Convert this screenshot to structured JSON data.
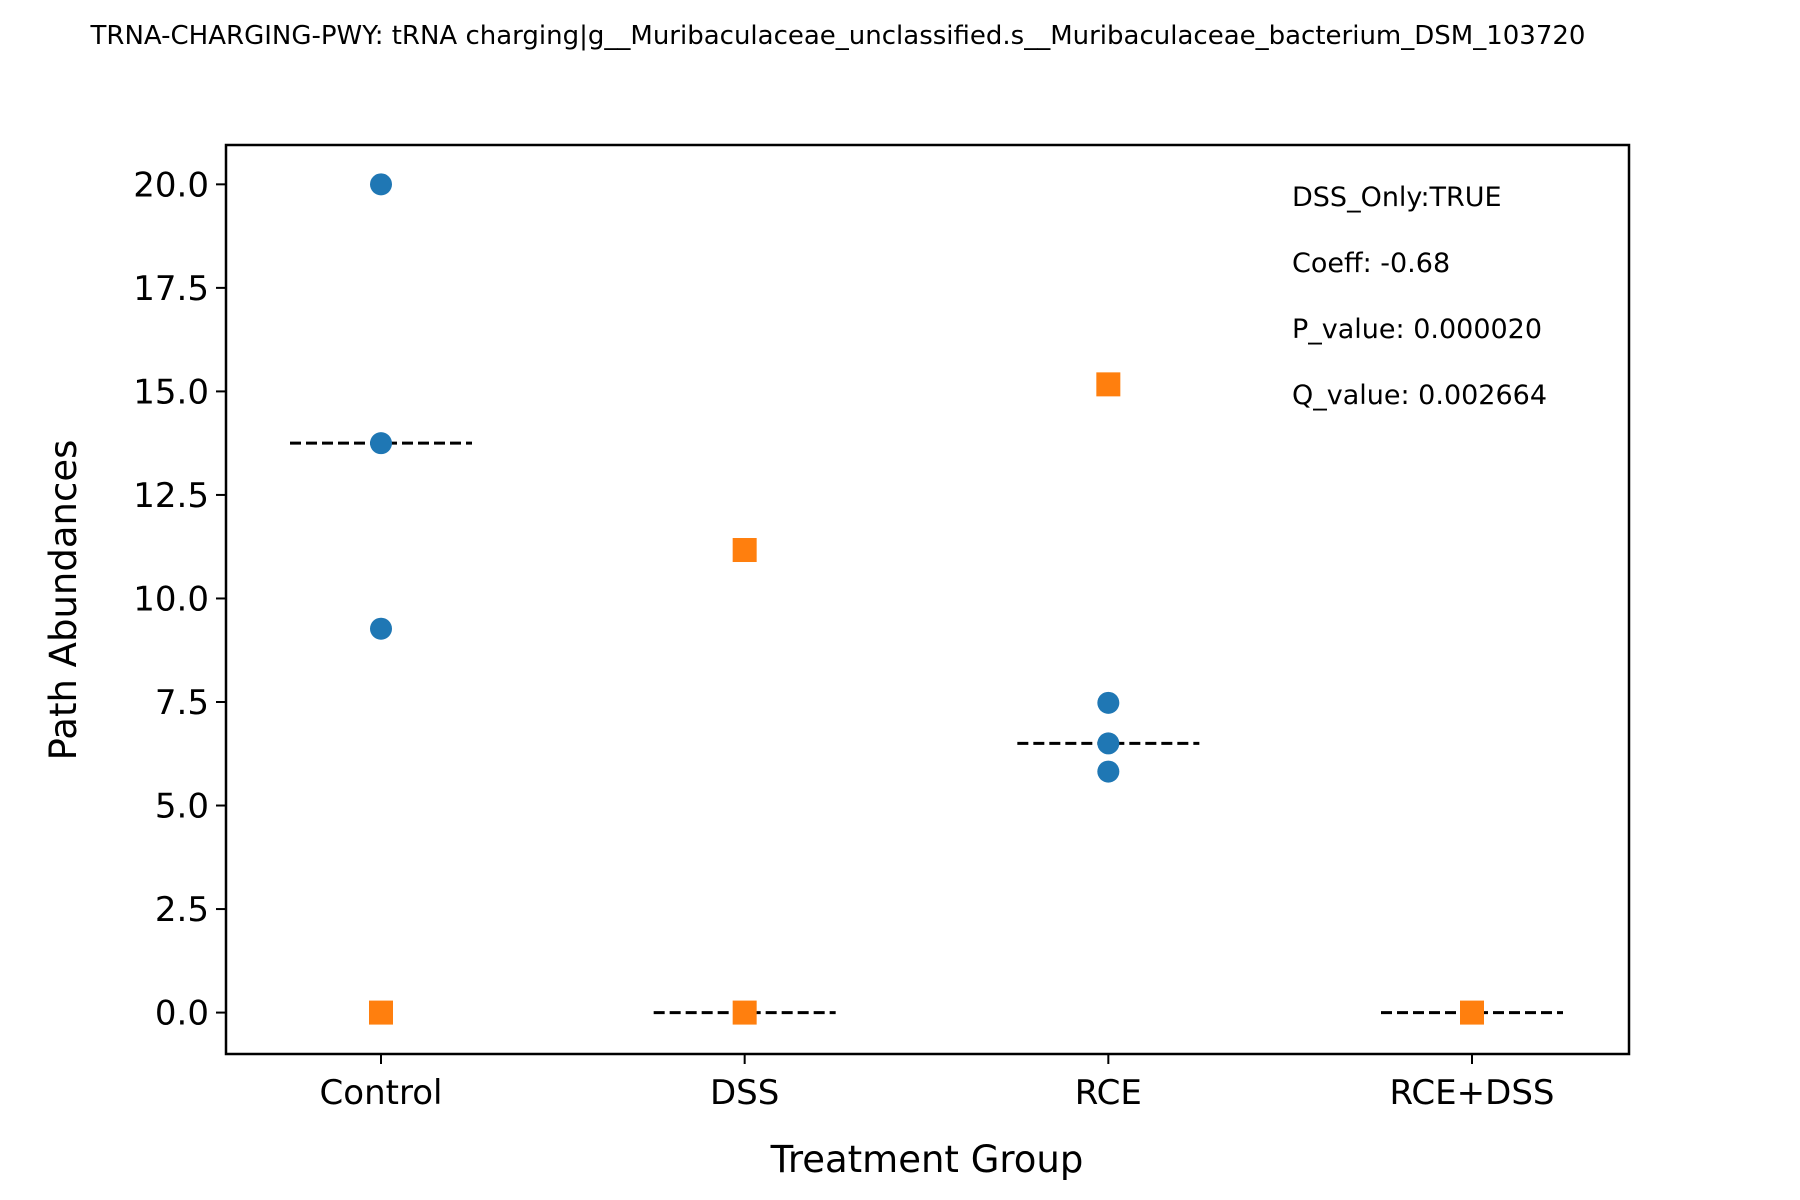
{
  "chart_data": {
    "type": "scatter",
    "title": "TRNA-CHARGING-PWY: tRNA charging|g__Muribaculaceae_unclassified.s__Muribaculaceae_bacterium_DSM_103720",
    "xlabel": "Treatment Group",
    "ylabel": "Path Abundances",
    "categories": [
      "Control",
      "DSS",
      "RCE",
      "RCE+DSS"
    ],
    "ylim": [
      -1.0,
      20.95
    ],
    "yticks": [
      "0.0",
      "2.5",
      "5.0",
      "7.5",
      "10.0",
      "12.5",
      "15.0",
      "17.5",
      "20.0"
    ],
    "grid": false,
    "colors": {
      "circle_series": "#1f77b4",
      "square_series": "#ff7f0e",
      "median_line": "#000000"
    },
    "series": [
      {
        "marker": "circle",
        "color": "#1f77b4",
        "points": [
          {
            "category": "Control",
            "value": 20.0
          },
          {
            "category": "Control",
            "value": 13.75
          },
          {
            "category": "Control",
            "value": 9.27
          },
          {
            "category": "RCE",
            "value": 7.48
          },
          {
            "category": "RCE",
            "value": 6.5
          },
          {
            "category": "RCE",
            "value": 5.82
          }
        ]
      },
      {
        "marker": "square",
        "color": "#ff7f0e",
        "points": [
          {
            "category": "Control",
            "value": 0.0
          },
          {
            "category": "DSS",
            "value": 11.17
          },
          {
            "category": "DSS",
            "value": 0.0
          },
          {
            "category": "RCE",
            "value": 15.17
          },
          {
            "category": "RCE+DSS",
            "value": 0.0
          }
        ]
      }
    ],
    "medians": [
      {
        "category": "Control",
        "value": 13.75
      },
      {
        "category": "DSS",
        "value": 0.0
      },
      {
        "category": "RCE",
        "value": 6.5
      },
      {
        "category": "RCE+DSS",
        "value": 0.0
      }
    ],
    "annotations": [
      "DSS_Only:TRUE",
      "Coeff: -0.68",
      "P_value: 0.000020",
      "Q_value: 0.002664"
    ]
  }
}
